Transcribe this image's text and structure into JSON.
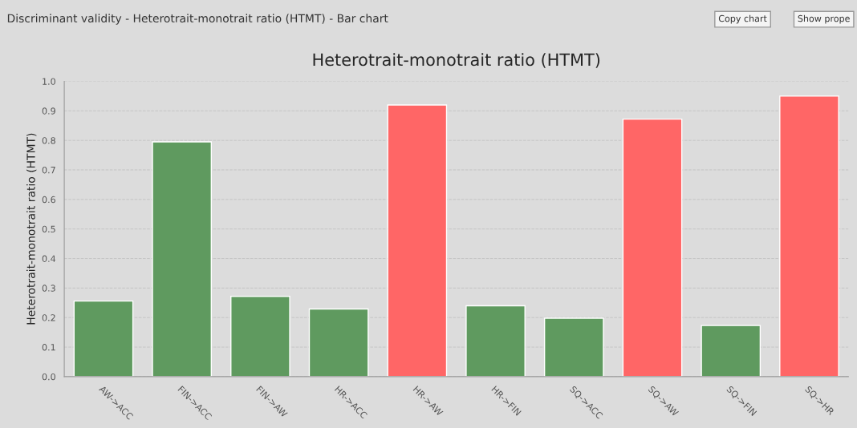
{
  "chart_data": {
    "type": "bar",
    "title": "Heterotrait-monotrait ratio (HTMT)",
    "ylabel": "Heterotrait-monotrait ratio (HTMT)",
    "annotations": [
      "Discriminant validity - Heterotrait-monotrait ratio (HTMT) - Bar chart",
      "Copy chart",
      "Show prope"
    ],
    "categories": [
      "AW->ACC",
      "FIN->ACC",
      "FIN->AW",
      "HR->ACC",
      "HR->AW",
      "HR->FIN",
      "SQ->ACC",
      "SQ->AW",
      "SQ->FIN",
      "SQ->HR"
    ],
    "values": [
      0.256,
      0.795,
      0.272,
      0.229,
      0.92,
      0.24,
      0.198,
      0.872,
      0.173,
      0.95
    ],
    "colors": [
      "#5f9a5f",
      "#5f9a5f",
      "#5f9a5f",
      "#5f9a5f",
      "#ff6666",
      "#5f9a5f",
      "#5f9a5f",
      "#ff6666",
      "#5f9a5f",
      "#ff6666"
    ],
    "ylim": [
      0,
      1.0
    ],
    "yticks": [
      {
        "value": 0,
        "label": "0.0"
      },
      {
        "value": 0.1,
        "label": "0.1"
      },
      {
        "value": 0.2,
        "label": "0.2"
      },
      {
        "value": 0.3,
        "label": "0.3"
      },
      {
        "value": 0.4,
        "label": "0.4"
      },
      {
        "value": 0.5,
        "label": "0.5"
      },
      {
        "value": 0.6,
        "label": "0.6"
      },
      {
        "value": 0.7,
        "label": "0.7"
      },
      {
        "value": 0.8,
        "label": "0.8"
      },
      {
        "value": 0.9,
        "label": "0.9"
      },
      {
        "value": 1.0,
        "label": "1.0"
      }
    ],
    "grid": "y"
  }
}
